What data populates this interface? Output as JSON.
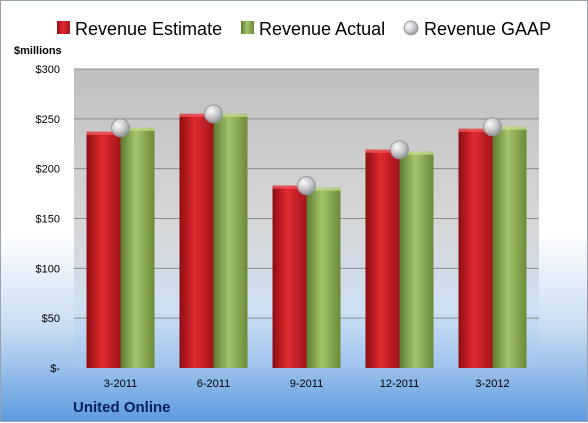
{
  "chart_data": {
    "type": "bar",
    "unit_label": "$millions",
    "categories": [
      "3-2011",
      "6-2011",
      "9-2011",
      "12-2011",
      "3-2012"
    ],
    "series": [
      {
        "name": "Revenue Estimate",
        "kind": "bar",
        "color": "#d42027",
        "values": [
          237,
          255,
          183,
          219,
          240
        ]
      },
      {
        "name": "Revenue Actual",
        "kind": "bar",
        "color": "#8fb054",
        "values": [
          241,
          255,
          181,
          217,
          242
        ]
      },
      {
        "name": "Revenue GAAP",
        "kind": "marker",
        "color": "#c0c4c8",
        "values": [
          241,
          255,
          183,
          219,
          242
        ]
      }
    ],
    "y_ticks": [
      {
        "value": 0,
        "label": "$-"
      },
      {
        "value": 50,
        "label": "$50"
      },
      {
        "value": 100,
        "label": "$100"
      },
      {
        "value": 150,
        "label": "$150"
      },
      {
        "value": 200,
        "label": "$200"
      },
      {
        "value": 250,
        "label": "$250"
      },
      {
        "value": 300,
        "label": "$300"
      }
    ],
    "ylim": [
      0,
      300
    ],
    "grid": true,
    "legend_position": "top",
    "company": "United Online"
  }
}
